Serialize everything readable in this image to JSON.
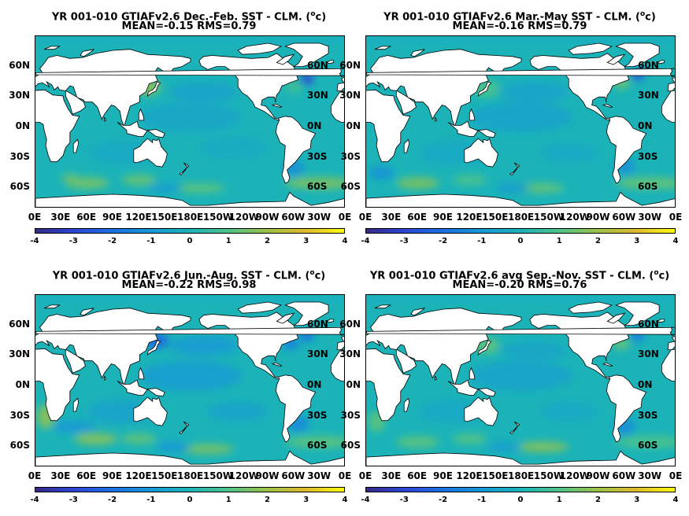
{
  "chart_data": [
    {
      "type": "heatmap",
      "title": "YR 001-010 GTIAFv2.6  Dec.-Feb. SST - CLM. (°c)",
      "title_pre": "YR 001-010 GTIAFv2.6  Dec.-Feb. SST - CLM. (",
      "title_sup": "o",
      "title_post": "c)",
      "subtitle": "MEAN=-0.15   RMS=0.79",
      "yticks": [
        "60N",
        "30N",
        "0N",
        "30S",
        "60S"
      ],
      "xticks": [
        "0E",
        "30E",
        "60E",
        "90E",
        "120E",
        "150E",
        "180E",
        "150W",
        "120W",
        "90W",
        "60W",
        "30W",
        "0E"
      ],
      "colorbar_ticks": [
        "-4",
        "-3",
        "-2",
        "-1",
        "0",
        "1",
        "2",
        "3",
        "4"
      ],
      "clim": [
        -4,
        4
      ],
      "ylim": [
        -80,
        90
      ],
      "xlim": [
        0,
        360
      ]
    },
    {
      "type": "heatmap",
      "title": "YR 001-010 GTIAFv2.6 Mar.-May SST - CLM. (°c)",
      "title_pre": "YR 001-010 GTIAFv2.6 Mar.-May SST - CLM. (",
      "title_sup": "o",
      "title_post": "c)",
      "subtitle": "MEAN=-0.16   RMS=0.79",
      "yticks": [
        "60N",
        "30N",
        "0N",
        "30S",
        "60S"
      ],
      "xticks": [
        "0E",
        "30E",
        "60E",
        "90E",
        "120E",
        "150E",
        "180E",
        "150W",
        "120W",
        "90W",
        "60W",
        "30W",
        "0E"
      ],
      "colorbar_ticks": [
        "-4",
        "-3",
        "-2",
        "-1",
        "0",
        "1",
        "2",
        "3",
        "4"
      ],
      "clim": [
        -4,
        4
      ],
      "ylim": [
        -80,
        90
      ],
      "xlim": [
        0,
        360
      ]
    },
    {
      "type": "heatmap",
      "title": "YR 001-010 GTIAFv2.6 Jun.-Aug. SST - CLM. (°c)",
      "title_pre": "YR 001-010 GTIAFv2.6 Jun.-Aug. SST - CLM. (",
      "title_sup": "o",
      "title_post": "c)",
      "subtitle": "MEAN=-0.22   RMS=0.98",
      "yticks": [
        "60N",
        "30N",
        "0N",
        "30S",
        "60S"
      ],
      "xticks": [
        "0E",
        "30E",
        "60E",
        "90E",
        "120E",
        "150E",
        "180E",
        "150W",
        "120W",
        "90W",
        "60W",
        "30W",
        "0E"
      ],
      "colorbar_ticks": [
        "-4",
        "-3",
        "-2",
        "-1",
        "0",
        "1",
        "2",
        "3",
        "4"
      ],
      "clim": [
        -4,
        4
      ],
      "ylim": [
        -80,
        90
      ],
      "xlim": [
        0,
        360
      ]
    },
    {
      "type": "heatmap",
      "title": "YR 001-010 GTIAFv2.6 avg Sep.-Nov. SST - CLM. (°c)",
      "title_pre": "YR 001-010 GTIAFv2.6 avg Sep.-Nov. SST - CLM. (",
      "title_sup": "o",
      "title_post": "c)",
      "subtitle": "MEAN=-0.20   RMS=0.76",
      "yticks": [
        "60N",
        "30N",
        "0N",
        "30S",
        "60S"
      ],
      "xticks": [
        "0E",
        "30E",
        "60E",
        "90E",
        "120E",
        "150E",
        "180E",
        "150W",
        "120W",
        "90W",
        "60W",
        "30W",
        "0E"
      ],
      "colorbar_ticks": [
        "-4",
        "-3",
        "-2",
        "-1",
        "0",
        "1",
        "2",
        "3",
        "4"
      ],
      "clim": [
        -4,
        4
      ],
      "ylim": [
        -80,
        90
      ],
      "xlim": [
        0,
        360
      ]
    }
  ],
  "colors": {
    "ocean_base": "#1bb3b8",
    "land": "#ffffff",
    "cold": "#2b46d5",
    "warm": "#f0c42a",
    "colormap": "parula"
  }
}
